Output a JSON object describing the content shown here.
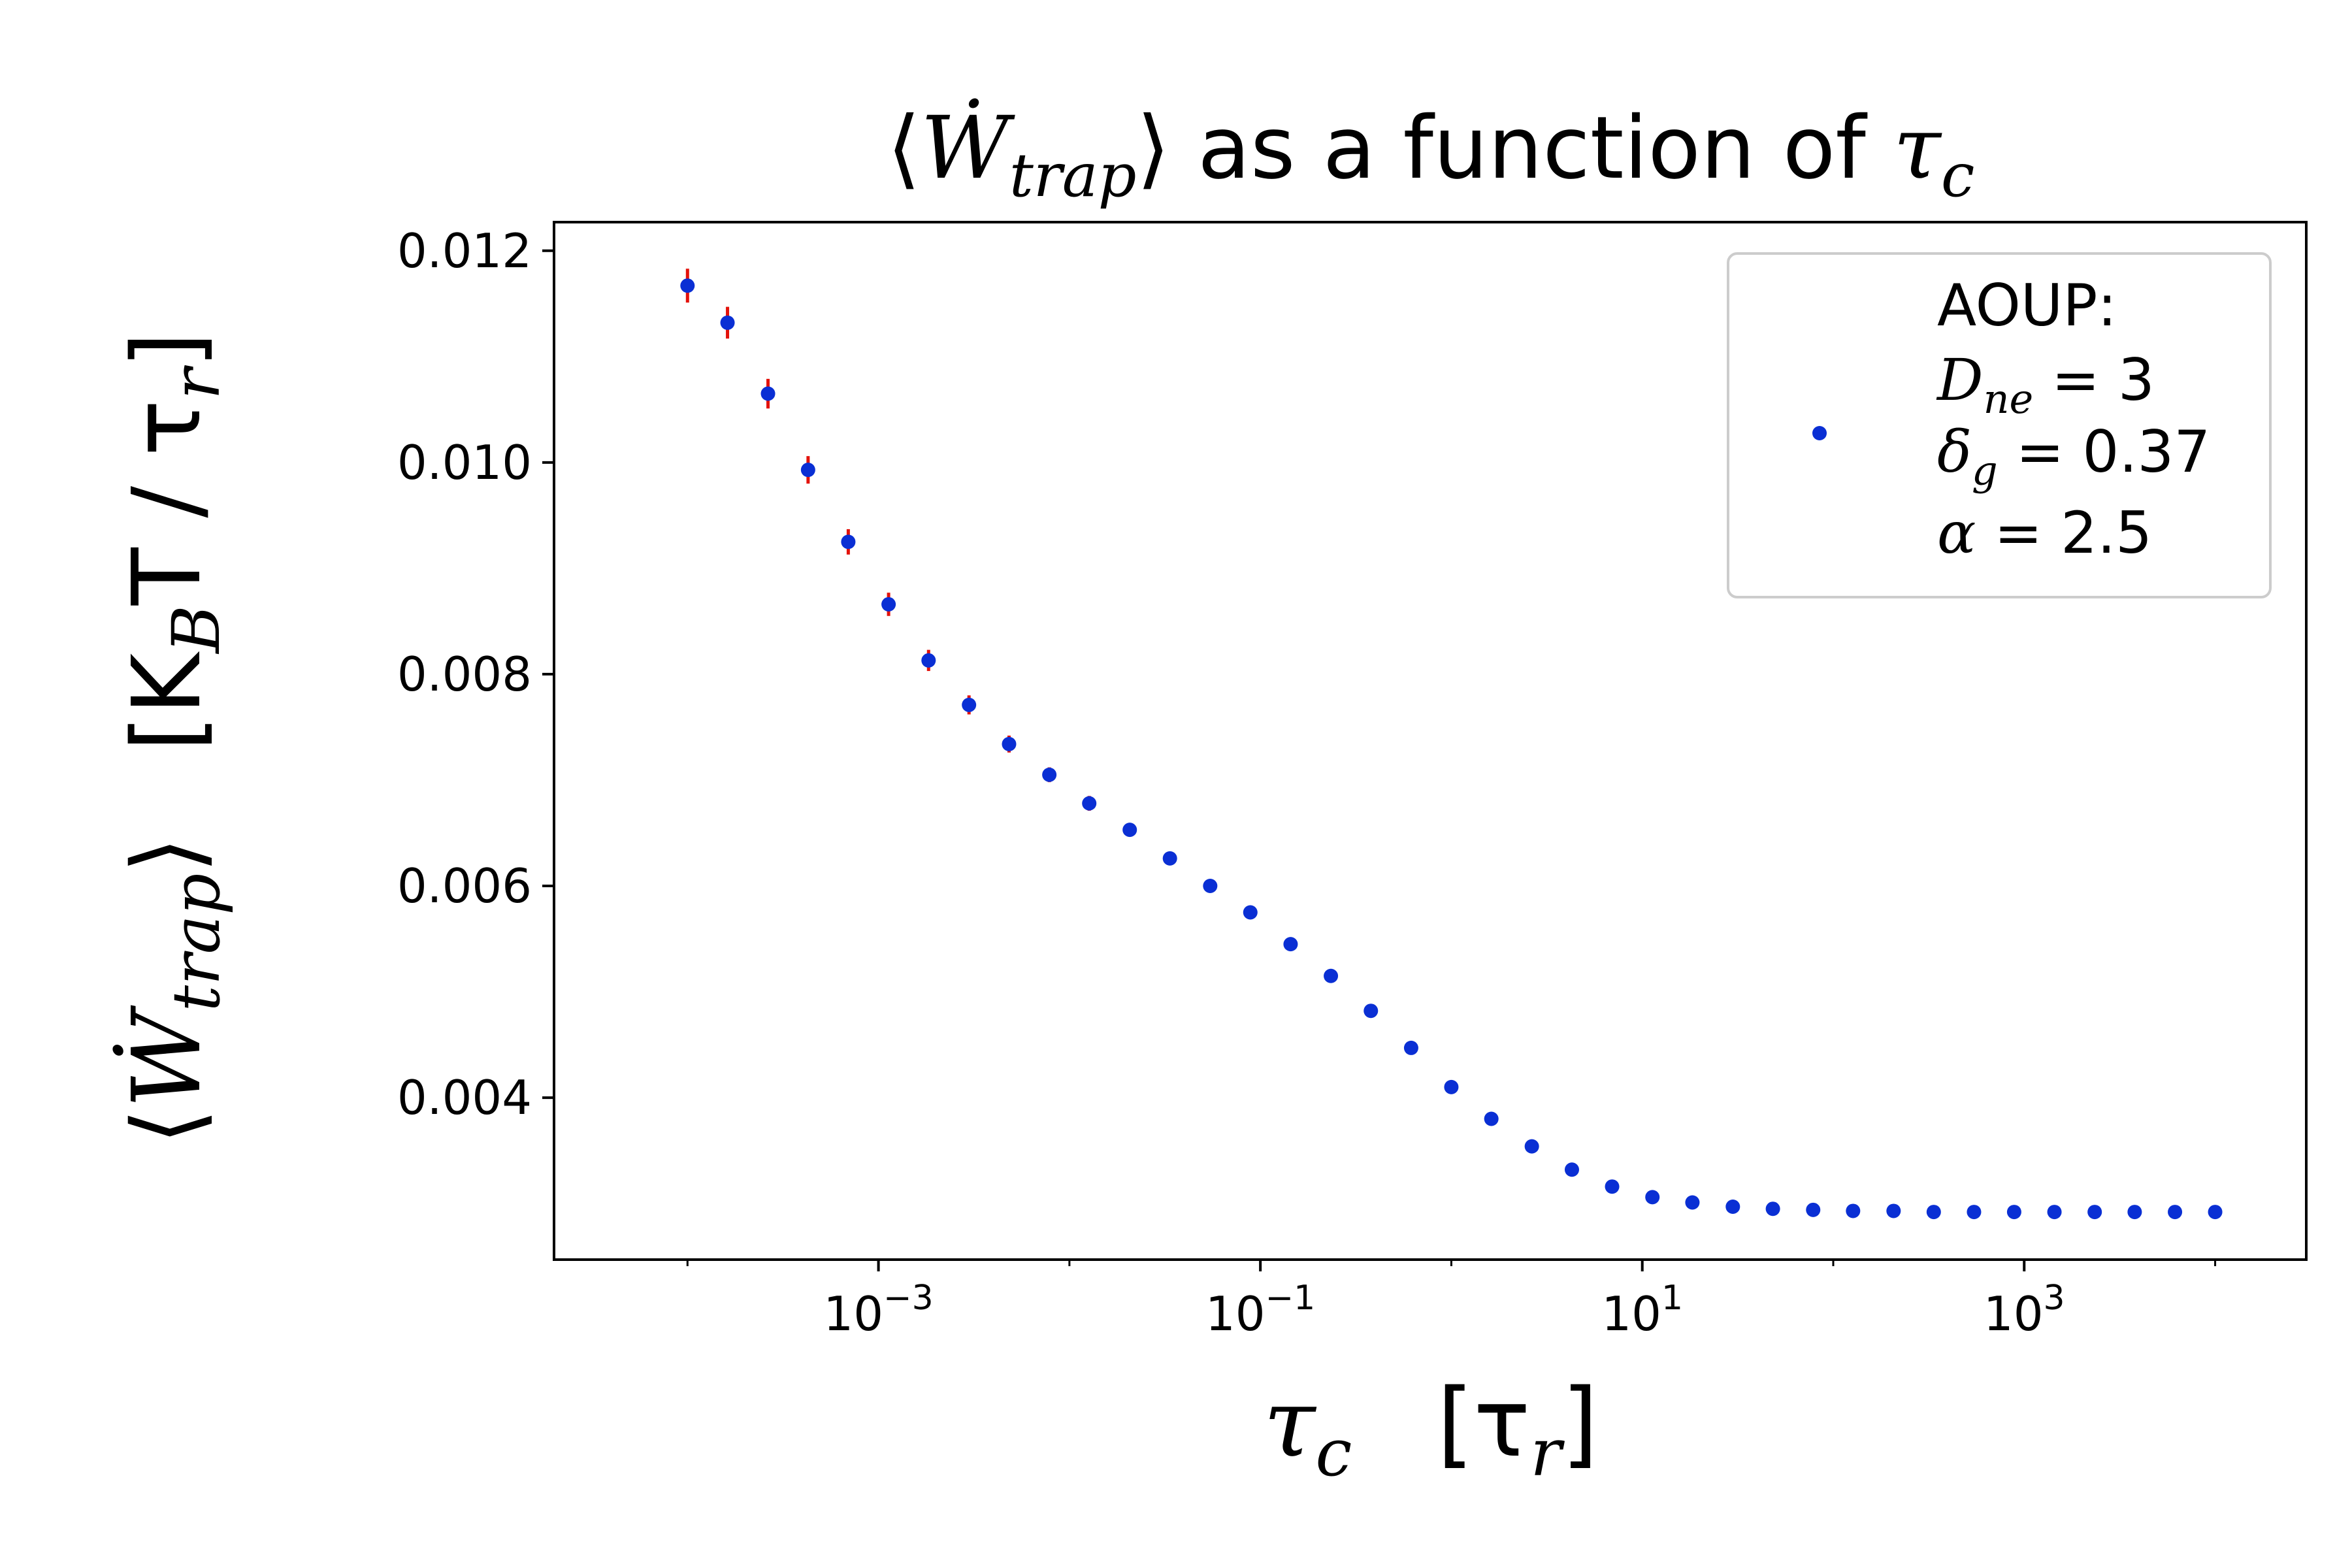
{
  "chart_data": {
    "type": "scatter",
    "title": {
      "prefix": "⟨",
      "main": "Ẇ",
      "sub": "trap",
      "suffix": "⟩ as a function of ",
      "var": "τ",
      "var_sub": "c"
    },
    "xlabel": {
      "main": "τ",
      "sub": "c",
      "unit": "[τ",
      "unit_sub": "r",
      "unit_close": "]"
    },
    "ylabel": {
      "prefix": "⟨",
      "main": "Ẇ",
      "sub": "trap",
      "suffix": "⟩",
      "unit_open": "[K",
      "unit_sub1": "B",
      "unit_mid": "T / τ",
      "unit_sub2": "r",
      "unit_close": "]"
    },
    "x_scale": "log",
    "xlim": [
      2e-05,
      30000
    ],
    "ylim": [
      0.00247,
      0.01227
    ],
    "x_ticks": [
      {
        "value": 0.001,
        "base": "10",
        "exp": "−3"
      },
      {
        "value": 0.1,
        "base": "10",
        "exp": "−1"
      },
      {
        "value": 10,
        "base": "10",
        "exp": "1"
      },
      {
        "value": 1000,
        "base": "10",
        "exp": "3"
      }
    ],
    "y_ticks": [
      {
        "value": 0.004,
        "label": "0.004"
      },
      {
        "value": 0.006,
        "label": "0.006"
      },
      {
        "value": 0.008,
        "label": "0.008"
      },
      {
        "value": 0.01,
        "label": "0.010"
      },
      {
        "value": 0.012,
        "label": "0.012"
      }
    ],
    "grid": false,
    "legend": {
      "placement": "top-right",
      "lines": [
        {
          "text": "AOUP:"
        },
        {
          "main": "D",
          "sub": "ne",
          "rest": " = 3"
        },
        {
          "main": "δ",
          "sub": "g",
          "rest": " = 0.37"
        },
        {
          "main": "α",
          "sub": "",
          "rest": " = 2.5"
        }
      ]
    },
    "series": [
      {
        "marker_color": "#0a2fd4",
        "errorbar_color": "#e3120b",
        "x": [
          0.0001,
          0.000162,
          0.000264,
          0.000428,
          0.000695,
          0.00113,
          0.00183,
          0.00298,
          0.00483,
          0.00785,
          0.0127,
          0.0207,
          0.0336,
          0.0546,
          0.0886,
          0.144,
          0.234,
          0.379,
          0.616,
          1.0,
          1.62,
          2.64,
          4.28,
          6.95,
          11.3,
          18.3,
          29.8,
          48.3,
          78.5,
          127,
          207,
          336,
          546,
          886,
          1440,
          2340,
          3790,
          6160,
          10000
        ],
        "y": [
          0.01167,
          0.01132,
          0.01065,
          0.00993,
          0.00925,
          0.00866,
          0.00813,
          0.00771,
          0.00734,
          0.00705,
          0.00678,
          0.00653,
          0.00626,
          0.006,
          0.00575,
          0.00545,
          0.00515,
          0.00482,
          0.00447,
          0.0041,
          0.0038,
          0.00354,
          0.00332,
          0.00316,
          0.00306,
          0.00301,
          0.00297,
          0.00295,
          0.00294,
          0.00293,
          0.00293,
          0.00292,
          0.00292,
          0.00292,
          0.00292,
          0.00292,
          0.00292,
          0.00292,
          0.00292
        ],
        "yerr": [
          0.00016,
          0.00015,
          0.00014,
          0.00013,
          0.00012,
          0.00011,
          0.0001,
          9e-05,
          8e-05,
          7e-05,
          7e-05,
          6e-05,
          5e-05,
          5e-05,
          4e-05,
          4e-05,
          3e-05,
          3e-05,
          2e-05,
          2e-05,
          2e-05,
          1e-05,
          1e-05,
          1e-05,
          1e-05,
          1e-05,
          1e-05,
          1e-05,
          1e-05,
          1e-05,
          1e-05,
          1e-05,
          1e-05,
          1e-05,
          1e-05,
          1e-05,
          1e-05,
          1e-05,
          1e-05
        ]
      }
    ]
  }
}
